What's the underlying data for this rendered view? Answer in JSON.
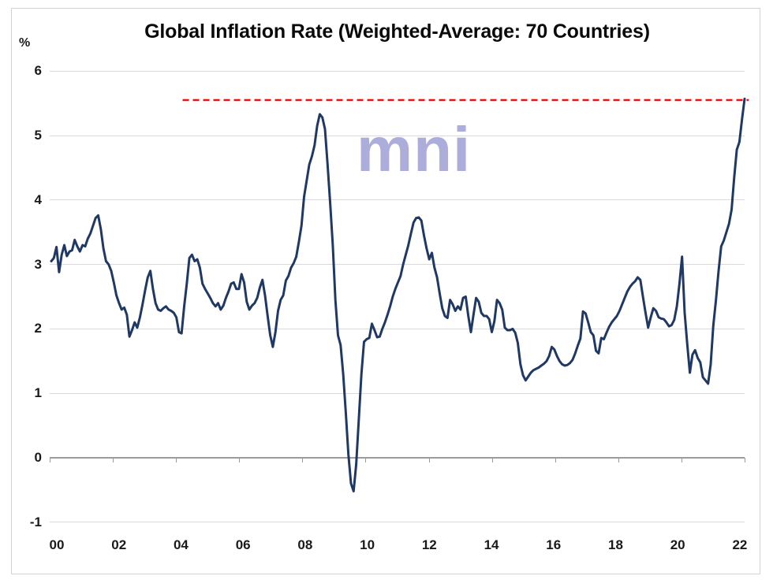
{
  "title": "Global Inflation Rate (Weighted-Average: 70 Countries)",
  "watermark": {
    "text": "mni",
    "color": "#a9a9da"
  },
  "y_axis": {
    "unit_label": "%",
    "ticks": [
      6,
      5,
      4,
      3,
      2,
      1,
      0,
      -1
    ]
  },
  "x_axis": {
    "labels": [
      "00",
      "02",
      "04",
      "06",
      "08",
      "10",
      "12",
      "14",
      "16",
      "18",
      "20",
      "22"
    ]
  },
  "chart_data": {
    "type": "line",
    "title": "Global Inflation Rate (Weighted-Average: 70 Countries)",
    "ylabel": "%",
    "ylim": [
      -1,
      6
    ],
    "grid": true,
    "frequency": "monthly",
    "x_start": "2000-01",
    "x_end": "2022-03",
    "line_color": "#1f3864",
    "reference_line": {
      "value": 5.55,
      "style": "dashed",
      "color": "#ee1010",
      "span_years": [
        2004.2,
        2022.3
      ]
    },
    "series": [
      {
        "name": "Global inflation rate (weighted average of 70 countries, %)",
        "values": [
          3.05,
          3.1,
          3.27,
          2.88,
          3.15,
          3.3,
          3.13,
          3.2,
          3.22,
          3.38,
          3.28,
          3.2,
          3.3,
          3.28,
          3.4,
          3.48,
          3.6,
          3.72,
          3.76,
          3.55,
          3.25,
          3.05,
          3.0,
          2.9,
          2.72,
          2.52,
          2.4,
          2.3,
          2.33,
          2.22,
          1.88,
          1.98,
          2.1,
          2.02,
          2.18,
          2.38,
          2.6,
          2.8,
          2.9,
          2.62,
          2.4,
          2.3,
          2.28,
          2.32,
          2.35,
          2.3,
          2.28,
          2.25,
          2.18,
          1.95,
          1.93,
          2.35,
          2.7,
          3.1,
          3.15,
          3.05,
          3.08,
          2.95,
          2.7,
          2.62,
          2.55,
          2.48,
          2.4,
          2.35,
          2.4,
          2.3,
          2.36,
          2.48,
          2.58,
          2.7,
          2.72,
          2.62,
          2.62,
          2.85,
          2.72,
          2.42,
          2.3,
          2.36,
          2.4,
          2.48,
          2.64,
          2.76,
          2.52,
          2.2,
          1.9,
          1.72,
          1.95,
          2.28,
          2.45,
          2.52,
          2.75,
          2.82,
          2.95,
          3.02,
          3.12,
          3.35,
          3.6,
          4.05,
          4.3,
          4.55,
          4.68,
          4.85,
          5.15,
          5.33,
          5.28,
          5.1,
          4.55,
          3.95,
          3.3,
          2.45,
          1.9,
          1.75,
          1.3,
          0.7,
          0.05,
          -0.4,
          -0.52,
          -0.1,
          0.6,
          1.3,
          1.8,
          1.84,
          1.86,
          2.08,
          1.98,
          1.87,
          1.88,
          2.0,
          2.1,
          2.22,
          2.35,
          2.5,
          2.62,
          2.72,
          2.82,
          3.0,
          3.15,
          3.3,
          3.48,
          3.65,
          3.72,
          3.73,
          3.68,
          3.45,
          3.25,
          3.08,
          3.18,
          2.95,
          2.8,
          2.55,
          2.32,
          2.2,
          2.17,
          2.45,
          2.38,
          2.28,
          2.35,
          2.3,
          2.48,
          2.5,
          2.2,
          1.95,
          2.22,
          2.48,
          2.42,
          2.25,
          2.2,
          2.2,
          2.15,
          1.95,
          2.12,
          2.45,
          2.4,
          2.3,
          2.02,
          1.98,
          1.98,
          2.0,
          1.94,
          1.78,
          1.45,
          1.28,
          1.2,
          1.26,
          1.32,
          1.36,
          1.38,
          1.4,
          1.43,
          1.46,
          1.5,
          1.58,
          1.72,
          1.68,
          1.58,
          1.5,
          1.45,
          1.43,
          1.44,
          1.47,
          1.52,
          1.62,
          1.74,
          1.85,
          2.27,
          2.24,
          2.1,
          1.95,
          1.9,
          1.66,
          1.62,
          1.86,
          1.84,
          1.94,
          2.03,
          2.1,
          2.15,
          2.2,
          2.28,
          2.38,
          2.48,
          2.58,
          2.65,
          2.7,
          2.74,
          2.8,
          2.76,
          2.5,
          2.25,
          2.02,
          2.18,
          2.32,
          2.28,
          2.18,
          2.16,
          2.15,
          2.1,
          2.04,
          2.06,
          2.14,
          2.35,
          2.7,
          3.12,
          2.25,
          1.76,
          1.32,
          1.6,
          1.67,
          1.55,
          1.48,
          1.25,
          1.2,
          1.15,
          1.45,
          2.05,
          2.45,
          2.9,
          3.28,
          3.37,
          3.5,
          3.63,
          3.85,
          4.35,
          4.78,
          4.9,
          5.25,
          5.57
        ]
      }
    ]
  }
}
